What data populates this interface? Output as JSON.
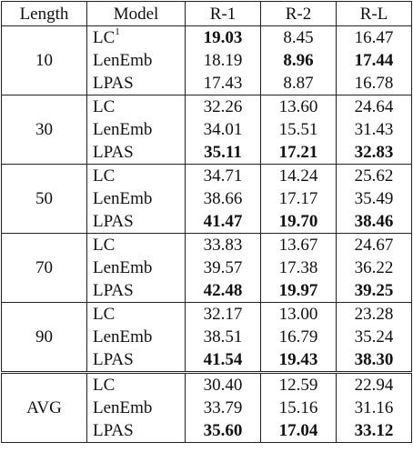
{
  "table": {
    "headers": [
      "Length",
      "Model",
      "R-1",
      "R-2",
      "R-L"
    ],
    "groups": [
      {
        "length": "10",
        "rows": [
          {
            "model": "LC",
            "sup": "1",
            "r1": "19.03",
            "r2": "8.45",
            "rl": "16.47",
            "bold": [
              true,
              false,
              false
            ]
          },
          {
            "model": "LenEmb",
            "sup": "",
            "r1": "18.19",
            "r2": "8.96",
            "rl": "17.44",
            "bold": [
              false,
              true,
              true
            ]
          },
          {
            "model": "LPAS",
            "sup": "",
            "r1": "17.43",
            "r2": "8.87",
            "rl": "16.78",
            "bold": [
              false,
              false,
              false
            ]
          }
        ]
      },
      {
        "length": "30",
        "rows": [
          {
            "model": "LC",
            "sup": "",
            "r1": "32.26",
            "r2": "13.60",
            "rl": "24.64",
            "bold": [
              false,
              false,
              false
            ]
          },
          {
            "model": "LenEmb",
            "sup": "",
            "r1": "34.01",
            "r2": "15.51",
            "rl": "31.43",
            "bold": [
              false,
              false,
              false
            ]
          },
          {
            "model": "LPAS",
            "sup": "",
            "r1": "35.11",
            "r2": "17.21",
            "rl": "32.83",
            "bold": [
              true,
              true,
              true
            ]
          }
        ]
      },
      {
        "length": "50",
        "rows": [
          {
            "model": "LC",
            "sup": "",
            "r1": "34.71",
            "r2": "14.24",
            "rl": "25.62",
            "bold": [
              false,
              false,
              false
            ]
          },
          {
            "model": "LenEmb",
            "sup": "",
            "r1": "38.66",
            "r2": "17.17",
            "rl": "35.49",
            "bold": [
              false,
              false,
              false
            ]
          },
          {
            "model": "LPAS",
            "sup": "",
            "r1": "41.47",
            "r2": "19.70",
            "rl": "38.46",
            "bold": [
              true,
              true,
              true
            ]
          }
        ]
      },
      {
        "length": "70",
        "rows": [
          {
            "model": "LC",
            "sup": "",
            "r1": "33.83",
            "r2": "13.67",
            "rl": "24.67",
            "bold": [
              false,
              false,
              false
            ]
          },
          {
            "model": "LenEmb",
            "sup": "",
            "r1": "39.57",
            "r2": "17.38",
            "rl": "36.22",
            "bold": [
              false,
              false,
              false
            ]
          },
          {
            "model": "LPAS",
            "sup": "",
            "r1": "42.48",
            "r2": "19.97",
            "rl": "39.25",
            "bold": [
              true,
              true,
              true
            ]
          }
        ]
      },
      {
        "length": "90",
        "rows": [
          {
            "model": "LC",
            "sup": "",
            "r1": "32.17",
            "r2": "13.00",
            "rl": "23.28",
            "bold": [
              false,
              false,
              false
            ]
          },
          {
            "model": "LenEmb",
            "sup": "",
            "r1": "38.51",
            "r2": "16.79",
            "rl": "35.24",
            "bold": [
              false,
              false,
              false
            ]
          },
          {
            "model": "LPAS",
            "sup": "",
            "r1": "41.54",
            "r2": "19.43",
            "rl": "38.30",
            "bold": [
              true,
              true,
              true
            ]
          }
        ]
      },
      {
        "length": "AVG",
        "avg": true,
        "rows": [
          {
            "model": "LC",
            "sup": "",
            "r1": "30.40",
            "r2": "12.59",
            "rl": "22.94",
            "bold": [
              false,
              false,
              false
            ]
          },
          {
            "model": "LenEmb",
            "sup": "",
            "r1": "33.79",
            "r2": "15.16",
            "rl": "31.16",
            "bold": [
              false,
              false,
              false
            ]
          },
          {
            "model": "LPAS",
            "sup": "",
            "r1": "35.60",
            "r2": "17.04",
            "rl": "33.12",
            "bold": [
              true,
              true,
              true
            ]
          }
        ]
      }
    ]
  }
}
